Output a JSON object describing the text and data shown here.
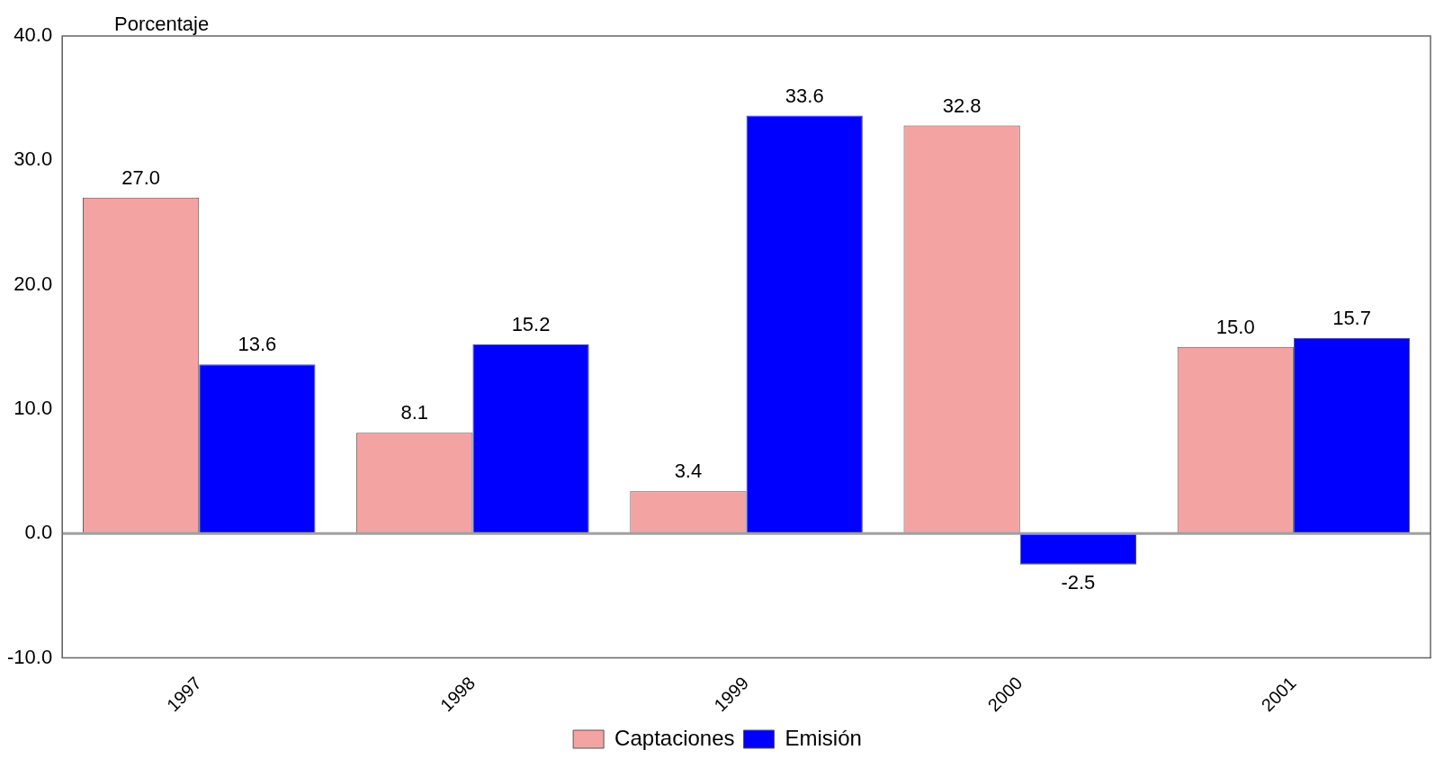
{
  "chart_data": {
    "type": "bar",
    "ylabel": "Porcentaje",
    "categories": [
      "1997",
      "1998",
      "1999",
      "2000",
      "2001"
    ],
    "series": [
      {
        "name": "Captaciones",
        "color": "#f4a3a3",
        "values": [
          27.0,
          8.1,
          3.4,
          32.8,
          15.0
        ],
        "value_labels": [
          "27.0",
          "8.1",
          "3.4",
          "32.8",
          "15.0"
        ]
      },
      {
        "name": "Emisión",
        "color": "#0000ff",
        "values": [
          13.6,
          15.2,
          33.6,
          -2.5,
          15.7
        ],
        "value_labels": [
          "13.6",
          "15.2",
          "33.6",
          "-2.5",
          "15.7"
        ]
      }
    ],
    "ylim": [
      -10,
      40
    ],
    "yticks": [
      {
        "value": -10,
        "label": "-10.0"
      },
      {
        "value": 0,
        "label": "0.0"
      },
      {
        "value": 10,
        "label": "10.0"
      },
      {
        "value": 20,
        "label": "20.0"
      },
      {
        "value": 30,
        "label": "30.0"
      },
      {
        "value": 40,
        "label": "40.0"
      }
    ],
    "ref_lines": [
      {
        "axis": "y",
        "value": 0,
        "color": "#a0a0a0"
      }
    ],
    "grid": false,
    "legend": "bottom"
  }
}
